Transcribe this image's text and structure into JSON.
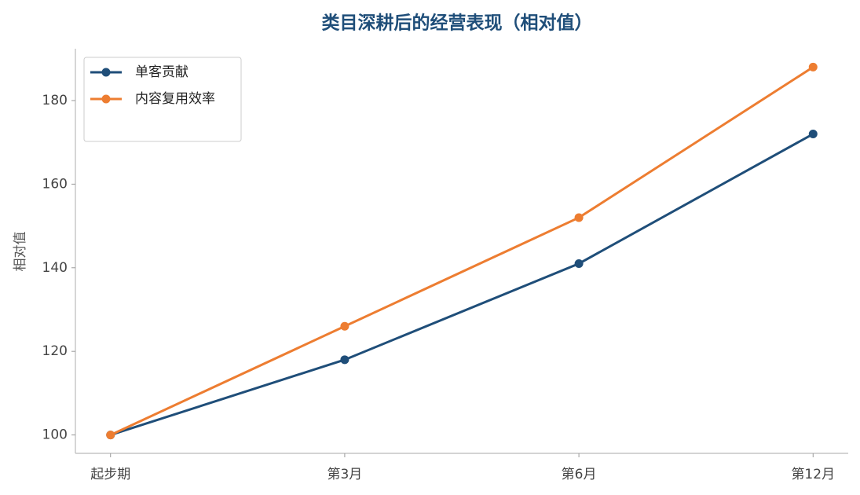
{
  "chart_data": {
    "type": "line",
    "title": "类目深耕后的经营表现（相对值）",
    "y_label": "相对值",
    "categories": [
      "起步期",
      "第3月",
      "第6月",
      "第12月"
    ],
    "series": [
      {
        "name": "单客贡献",
        "color": "#1f4e79",
        "values": [
          100,
          118,
          141,
          172
        ]
      },
      {
        "name": "内容复用效率",
        "color": "#ed7d31",
        "values": [
          100,
          126,
          152,
          188
        ]
      }
    ],
    "ylim": [
      95.6,
      192.4
    ],
    "yticks": [
      100,
      120,
      140,
      160,
      180
    ],
    "grid": false,
    "legend": "upper left"
  }
}
